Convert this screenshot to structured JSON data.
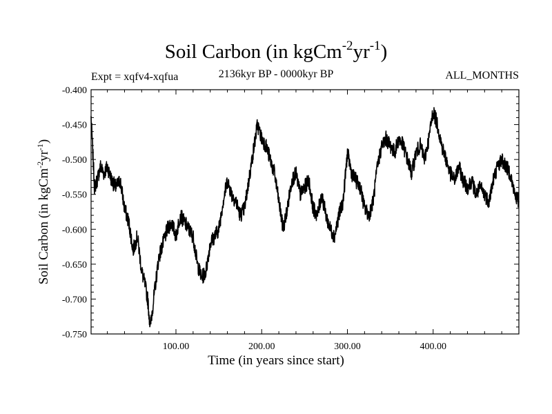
{
  "chart_data": {
    "type": "line",
    "title": {
      "main": "Soil Carbon (in kgCm",
      "sup1": "-2",
      "mid": "yr",
      "sup2": "-1",
      "end": ")"
    },
    "subtitle_left": "Expt = xqfv4-xqfua",
    "subtitle_center": "2136kyr BP - 0000kyr BP",
    "subtitle_right": "ALL_MONTHS",
    "xlabel": "Time (in years since start)",
    "ylabel": {
      "main": "Soil Carbon (in kgCm",
      "sup1": "-2",
      "mid": "yr",
      "sup2": "-1",
      "end": ")"
    },
    "xlim": [
      1,
      500
    ],
    "ylim": [
      -0.75,
      -0.4
    ],
    "x_ticks": [
      100,
      200,
      300,
      400
    ],
    "x_tick_labels": [
      "100.00",
      "200.00",
      "300.00",
      "400.00"
    ],
    "y_ticks": [
      -0.4,
      -0.45,
      -0.5,
      -0.55,
      -0.6,
      -0.65,
      -0.7,
      -0.75
    ],
    "y_tick_labels": [
      "-0.400",
      "-0.450",
      "-0.500",
      "-0.550",
      "-0.600",
      "-0.650",
      "-0.700",
      "-0.750"
    ],
    "grid": false,
    "series": [
      {
        "name": "Soil Carbon",
        "color": "#000000",
        "x": [
          1,
          5,
          8,
          12,
          16,
          20,
          25,
          30,
          35,
          40,
          45,
          50,
          55,
          60,
          64,
          67,
          70,
          75,
          80,
          85,
          90,
          95,
          100,
          105,
          110,
          115,
          120,
          125,
          130,
          135,
          140,
          145,
          150,
          155,
          160,
          165,
          170,
          175,
          180,
          185,
          190,
          195,
          200,
          205,
          210,
          215,
          220,
          225,
          230,
          235,
          240,
          245,
          250,
          255,
          260,
          265,
          270,
          275,
          280,
          285,
          290,
          295,
          300,
          305,
          310,
          315,
          320,
          325,
          330,
          335,
          340,
          345,
          350,
          355,
          360,
          365,
          370,
          375,
          380,
          385,
          390,
          395,
          400,
          405,
          410,
          415,
          420,
          425,
          430,
          435,
          440,
          445,
          450,
          455,
          460,
          465,
          470,
          475,
          480,
          485,
          490,
          495,
          500
        ],
        "values": [
          -0.44,
          -0.54,
          -0.53,
          -0.51,
          -0.52,
          -0.51,
          -0.53,
          -0.54,
          -0.53,
          -0.57,
          -0.59,
          -0.63,
          -0.61,
          -0.66,
          -0.68,
          -0.7,
          -0.74,
          -0.69,
          -0.64,
          -0.62,
          -0.6,
          -0.59,
          -0.61,
          -0.58,
          -0.59,
          -0.6,
          -0.61,
          -0.65,
          -0.67,
          -0.66,
          -0.62,
          -0.61,
          -0.6,
          -0.56,
          -0.53,
          -0.55,
          -0.56,
          -0.58,
          -0.57,
          -0.53,
          -0.49,
          -0.45,
          -0.47,
          -0.48,
          -0.5,
          -0.52,
          -0.56,
          -0.6,
          -0.57,
          -0.53,
          -0.52,
          -0.55,
          -0.54,
          -0.53,
          -0.57,
          -0.58,
          -0.55,
          -0.58,
          -0.6,
          -0.61,
          -0.58,
          -0.56,
          -0.49,
          -0.52,
          -0.53,
          -0.54,
          -0.57,
          -0.58,
          -0.56,
          -0.51,
          -0.48,
          -0.47,
          -0.48,
          -0.49,
          -0.47,
          -0.48,
          -0.5,
          -0.52,
          -0.49,
          -0.48,
          -0.5,
          -0.47,
          -0.43,
          -0.45,
          -0.48,
          -0.5,
          -0.52,
          -0.53,
          -0.51,
          -0.53,
          -0.54,
          -0.53,
          -0.55,
          -0.54,
          -0.55,
          -0.56,
          -0.53,
          -0.51,
          -0.5,
          -0.51,
          -0.52,
          -0.55,
          -0.56
        ]
      }
    ]
  }
}
